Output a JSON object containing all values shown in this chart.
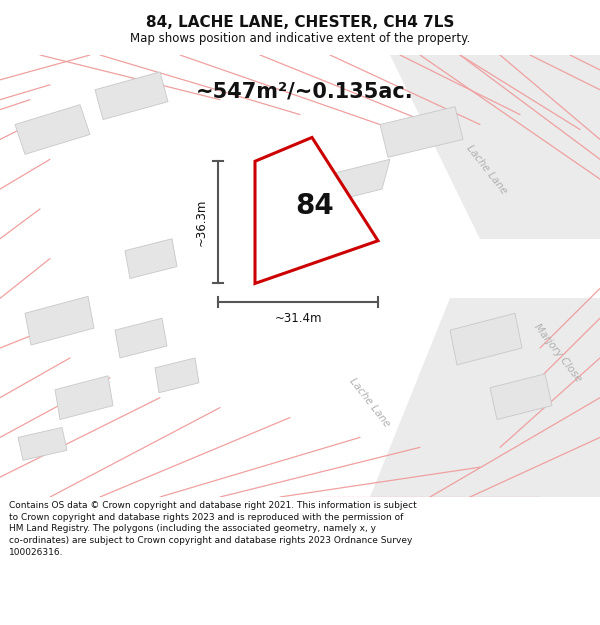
{
  "title": "84, LACHE LANE, CHESTER, CH4 7LS",
  "subtitle": "Map shows position and indicative extent of the property.",
  "area_text": "~547m²/~0.135ac.",
  "width_label": "~31.4m",
  "height_label": "~36.3m",
  "label": "84",
  "footer": "Contains OS data © Crown copyright and database right 2021. This information is subject\nto Crown copyright and database rights 2023 and is reproduced with the permission of\nHM Land Registry. The polygons (including the associated geometry, namely x, y\nco-ordinates) are subject to Crown copyright and database rights 2023 Ordnance Survey\n100026316.",
  "bg_color": "#ffffff",
  "map_bg": "#f2f2f2",
  "plot_fill": "#ffffff",
  "plot_edge": "#cc0000",
  "building_fill": "#e5e5e5",
  "pink_line": "#f0a0a0",
  "dark_line": "#555555",
  "road_text": "#b0b0b0"
}
